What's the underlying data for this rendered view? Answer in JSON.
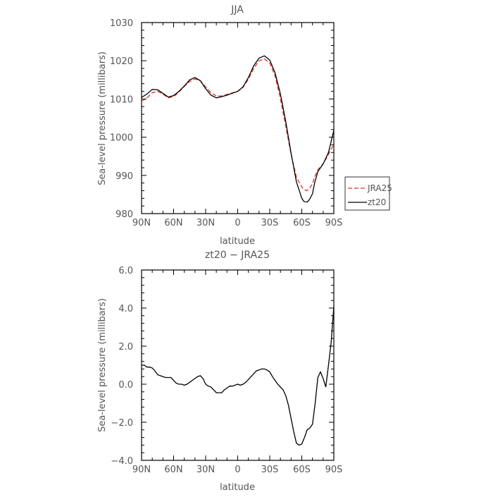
{
  "chart_data": [
    {
      "type": "line",
      "title": "JJA",
      "xlabel": "latitude",
      "ylabel": "Sea-level pressure (millibars)",
      "xlim": [
        90,
        -90
      ],
      "ylim": [
        980,
        1030
      ],
      "x_tick_values": [
        90,
        60,
        30,
        0,
        -30,
        -60,
        -90
      ],
      "x_tick_labels": [
        "90N",
        "60N",
        "30N",
        "0",
        "30S",
        "60S",
        "90S"
      ],
      "y_tick_values": [
        980,
        990,
        1000,
        1010,
        1020,
        1030
      ],
      "y_tick_labels": [
        "980",
        "990",
        "1000",
        "1010",
        "1020",
        "1030"
      ],
      "legend_position": "right",
      "series": [
        {
          "name": "JRA25",
          "color": "#e03030",
          "dash": true,
          "x": [
            90,
            85,
            80,
            75,
            70,
            65,
            60,
            55,
            50,
            45,
            40,
            35,
            30,
            25,
            20,
            15,
            10,
            5,
            0,
            -5,
            -10,
            -15,
            -20,
            -25,
            -30,
            -35,
            -40,
            -45,
            -50,
            -55,
            -60,
            -62,
            -65,
            -67,
            -70,
            -72,
            -75,
            -80,
            -85,
            -90
          ],
          "y": [
            1009.4,
            1010.3,
            1011.6,
            1012.0,
            1011.3,
            1010.3,
            1010.6,
            1011.8,
            1013.3,
            1014.6,
            1015.2,
            1014.8,
            1013.2,
            1011.6,
            1010.8,
            1010.8,
            1011.2,
            1011.6,
            1012.0,
            1013.0,
            1015.2,
            1018.0,
            1020.0,
            1020.5,
            1019.4,
            1016.0,
            1010.0,
            1002.8,
            995.5,
            989.5,
            987.0,
            986.3,
            986.0,
            986.5,
            987.8,
            989.6,
            991.5,
            993.0,
            995.5,
            998.2
          ]
        },
        {
          "name": "zt20",
          "color": "#000000",
          "dash": false,
          "x": [
            90,
            85,
            80,
            75,
            70,
            65,
            60,
            55,
            50,
            45,
            40,
            35,
            30,
            25,
            20,
            15,
            10,
            5,
            0,
            -5,
            -10,
            -15,
            -20,
            -25,
            -30,
            -35,
            -40,
            -45,
            -50,
            -55,
            -60,
            -62,
            -65,
            -67,
            -70,
            -72,
            -75,
            -80,
            -85,
            -90
          ],
          "y": [
            1010.4,
            1011.3,
            1012.5,
            1012.4,
            1011.5,
            1010.5,
            1010.9,
            1012.0,
            1013.4,
            1015.0,
            1015.6,
            1014.8,
            1012.7,
            1011.0,
            1010.3,
            1010.6,
            1011.0,
            1011.5,
            1012.0,
            1013.2,
            1015.6,
            1018.7,
            1020.7,
            1021.3,
            1020.2,
            1016.8,
            1011.3,
            1004.0,
            995.8,
            988.3,
            984.0,
            983.2,
            983.0,
            983.6,
            985.2,
            988.0,
            991.0,
            993.0,
            996.0,
            1001.8
          ]
        }
      ]
    },
    {
      "type": "line",
      "title": "zt20 − JRA25",
      "xlabel": "latitude",
      "ylabel": "Sea-level pressure (millibars)",
      "xlim": [
        90,
        -90
      ],
      "ylim": [
        -4.0,
        6.0
      ],
      "x_tick_values": [
        90,
        60,
        30,
        0,
        -30,
        -60,
        -90
      ],
      "x_tick_labels": [
        "90N",
        "60N",
        "30N",
        "0",
        "30S",
        "60S",
        "90S"
      ],
      "y_tick_values": [
        -4,
        -2,
        0,
        2,
        4,
        6
      ],
      "y_tick_labels": [
        "−4.0",
        "−2.0",
        "0.0",
        "2.0",
        "4.0",
        "6.0"
      ],
      "series": [
        {
          "color": "#000000",
          "dash": false,
          "x": [
            90,
            87.5,
            85,
            82.5,
            80,
            77.5,
            75,
            72.5,
            70,
            67.5,
            65,
            62.5,
            60,
            57.5,
            55,
            52.5,
            50,
            47.5,
            45,
            42.5,
            40,
            37.5,
            35,
            32.5,
            30,
            27.5,
            25,
            22.5,
            20,
            17.5,
            15,
            12.5,
            10,
            7.5,
            5,
            2.5,
            0,
            -2.5,
            -5,
            -7.5,
            -10,
            -12.5,
            -15,
            -17.5,
            -20,
            -22.5,
            -25,
            -27.5,
            -30,
            -32.5,
            -35,
            -37.5,
            -40,
            -42.5,
            -45,
            -47.5,
            -50,
            -52.5,
            -55,
            -57.5,
            -60,
            -62.5,
            -65,
            -67.5,
            -70,
            -72.5,
            -75,
            -77.5,
            -80,
            -82.5,
            -85,
            -87.5,
            -90
          ],
          "y": [
            1.0,
            1.0,
            0.9,
            0.9,
            0.85,
            0.7,
            0.5,
            0.45,
            0.4,
            0.35,
            0.35,
            0.35,
            0.2,
            0.05,
            0.0,
            0.0,
            -0.05,
            0.0,
            0.1,
            0.2,
            0.3,
            0.4,
            0.45,
            0.3,
            0.0,
            -0.1,
            -0.15,
            -0.3,
            -0.45,
            -0.45,
            -0.45,
            -0.3,
            -0.2,
            -0.1,
            -0.1,
            -0.05,
            0.0,
            -0.05,
            0.0,
            0.1,
            0.25,
            0.4,
            0.55,
            0.7,
            0.75,
            0.8,
            0.8,
            0.75,
            0.65,
            0.4,
            0.2,
            0.0,
            -0.15,
            -0.3,
            -0.6,
            -1.1,
            -1.8,
            -2.5,
            -3.1,
            -3.2,
            -3.15,
            -2.8,
            -2.4,
            -2.3,
            -2.1,
            -1.0,
            0.35,
            0.65,
            0.3,
            -0.15,
            1.0,
            2.2,
            4.1
          ]
        }
      ]
    }
  ]
}
